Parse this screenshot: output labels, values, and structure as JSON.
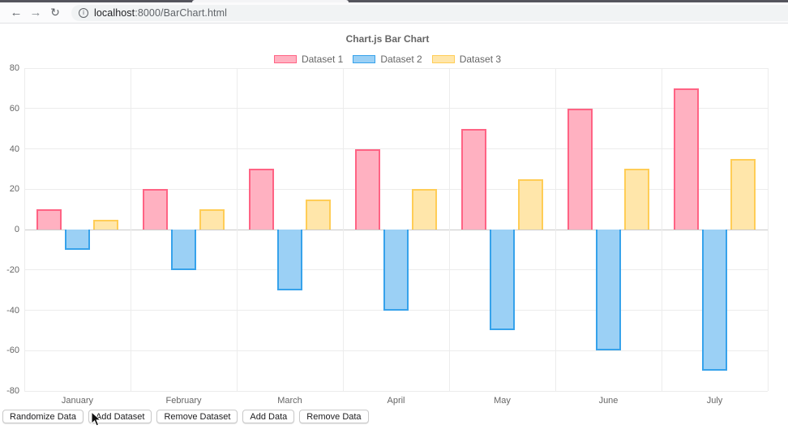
{
  "browser": {
    "url_host": "localhost",
    "url_path": ":8000/BarChart.html",
    "icons": {
      "back": "←",
      "forward": "→",
      "reload": "↻",
      "info": "i"
    }
  },
  "chart_data": {
    "type": "bar",
    "title": "Chart.js Bar Chart",
    "categories": [
      "January",
      "February",
      "March",
      "April",
      "May",
      "June",
      "July"
    ],
    "series": [
      {
        "name": "Dataset 1",
        "values": [
          10,
          20,
          30,
          40,
          50,
          60,
          70
        ],
        "fill": "#FFB1C1",
        "border": "#FF6384"
      },
      {
        "name": "Dataset 2",
        "values": [
          -10,
          -20,
          -30,
          -40,
          -50,
          -60,
          -70
        ],
        "fill": "#9BD0F5",
        "border": "#36A2EB"
      },
      {
        "name": "Dataset 3",
        "values": [
          5,
          10,
          15,
          20,
          25,
          30,
          35
        ],
        "fill": "#FFE6AA",
        "border": "#FFCD56"
      }
    ],
    "ylim": [
      -80,
      80
    ],
    "ytick_step": 20,
    "yticks": [
      "80",
      "60",
      "40",
      "20",
      "0",
      "-20",
      "-40",
      "-60",
      "-80"
    ],
    "legend_position": "top",
    "grid": true,
    "category_percentage": 0.8,
    "bar_percentage": 0.9
  },
  "buttons": [
    "Randomize Data",
    "Add Dataset",
    "Remove Dataset",
    "Add Data",
    "Remove Data"
  ]
}
